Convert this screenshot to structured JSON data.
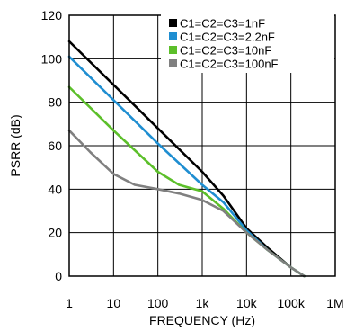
{
  "chart_data": {
    "type": "line",
    "xlabel": "FREQUENCY (Hz)",
    "ylabel": "PSRR (dB)",
    "x_scale": "log",
    "xlim": [
      1,
      1000000
    ],
    "ylim": [
      0,
      120
    ],
    "x_ticks": [
      1,
      10,
      100,
      1000,
      10000,
      100000,
      1000000
    ],
    "x_tick_labels": [
      "1",
      "10",
      "100",
      "1k",
      "10k",
      "100k",
      "1M"
    ],
    "y_ticks": [
      0,
      20,
      40,
      60,
      80,
      100,
      120
    ],
    "y_tick_labels": [
      "0",
      "20",
      "40",
      "60",
      "80",
      "100",
      "120"
    ],
    "grid": true,
    "legend_position": "top-right",
    "series": [
      {
        "name": "C1=C2=C3=1nF",
        "color": "#000000",
        "points": [
          [
            1,
            108
          ],
          [
            10,
            88
          ],
          [
            100,
            68
          ],
          [
            1000,
            48
          ],
          [
            3000,
            37
          ],
          [
            10000,
            22
          ],
          [
            30000,
            13
          ],
          [
            100000,
            4
          ],
          [
            200000,
            0
          ]
        ]
      },
      {
        "name": "C1=C2=C3=2.2nF",
        "color": "#1f8ed1",
        "points": [
          [
            1,
            101
          ],
          [
            10,
            81
          ],
          [
            100,
            61
          ],
          [
            1000,
            42
          ],
          [
            3000,
            34
          ],
          [
            10000,
            21
          ],
          [
            30000,
            12
          ],
          [
            100000,
            4
          ],
          [
            200000,
            0
          ]
        ]
      },
      {
        "name": "C1=C2=C3=10nF",
        "color": "#5cbf2a",
        "points": [
          [
            1,
            87
          ],
          [
            10,
            67
          ],
          [
            100,
            48
          ],
          [
            300,
            42
          ],
          [
            1000,
            39
          ],
          [
            3000,
            31
          ],
          [
            10000,
            20
          ],
          [
            30000,
            12
          ],
          [
            100000,
            4
          ],
          [
            200000,
            0
          ]
        ]
      },
      {
        "name": "C1=C2=C3=100nF",
        "color": "#808080",
        "points": [
          [
            1,
            67
          ],
          [
            3,
            57
          ],
          [
            10,
            47
          ],
          [
            30,
            42
          ],
          [
            100,
            40
          ],
          [
            300,
            38
          ],
          [
            1000,
            35
          ],
          [
            3000,
            30
          ],
          [
            10000,
            20
          ],
          [
            30000,
            12
          ],
          [
            100000,
            4
          ],
          [
            200000,
            0
          ]
        ]
      }
    ]
  }
}
